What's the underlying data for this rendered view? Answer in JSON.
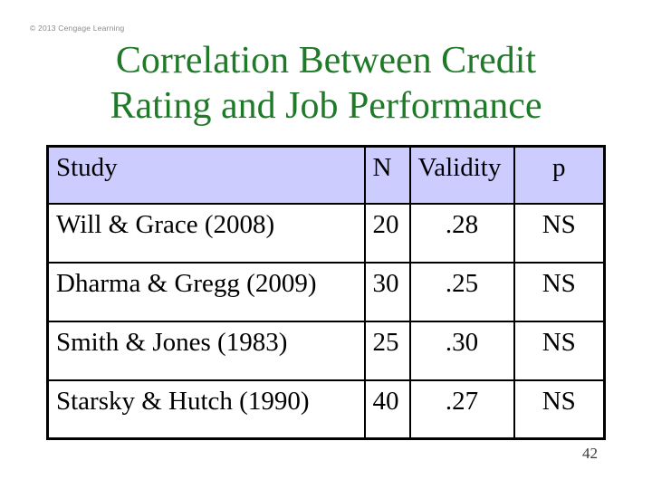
{
  "slide": {
    "copyright": "© 2013 Cengage Learning",
    "title_line1": "Correlation Between Credit",
    "title_line2": "Rating and Job Performance",
    "page_number": "42"
  },
  "colors": {
    "title_green": "#1f7a28",
    "table_header_bg": "#ccccff",
    "table_border": "#000000",
    "copyright_gray": "#8c8c8c",
    "page_number_gray": "#3a3a3a"
  },
  "table": {
    "headers": [
      "Study",
      "N",
      "Validity",
      "p"
    ],
    "rows": [
      {
        "study": "Will & Grace (2008)",
        "n": "20",
        "validity": ".28",
        "p": "NS"
      },
      {
        "study": "Dharma & Gregg (2009)",
        "n": "30",
        "validity": ".25",
        "p": "NS"
      },
      {
        "study": "Smith & Jones (1983)",
        "n": "25",
        "validity": ".30",
        "p": "NS"
      },
      {
        "study": "Starsky & Hutch (1990)",
        "n": "40",
        "validity": ".27",
        "p": "NS"
      }
    ]
  },
  "chart_data": {
    "type": "table",
    "title": "Correlation Between Credit Rating and Job Performance",
    "columns": [
      "Study",
      "N",
      "Validity",
      "p"
    ],
    "rows": [
      [
        "Will & Grace (2008)",
        20,
        0.28,
        "NS"
      ],
      [
        "Dharma & Gregg (2009)",
        30,
        0.25,
        "NS"
      ],
      [
        "Smith & Jones (1983)",
        25,
        0.3,
        "NS"
      ],
      [
        "Starsky & Hutch (1990)",
        40,
        0.27,
        "NS"
      ]
    ]
  }
}
